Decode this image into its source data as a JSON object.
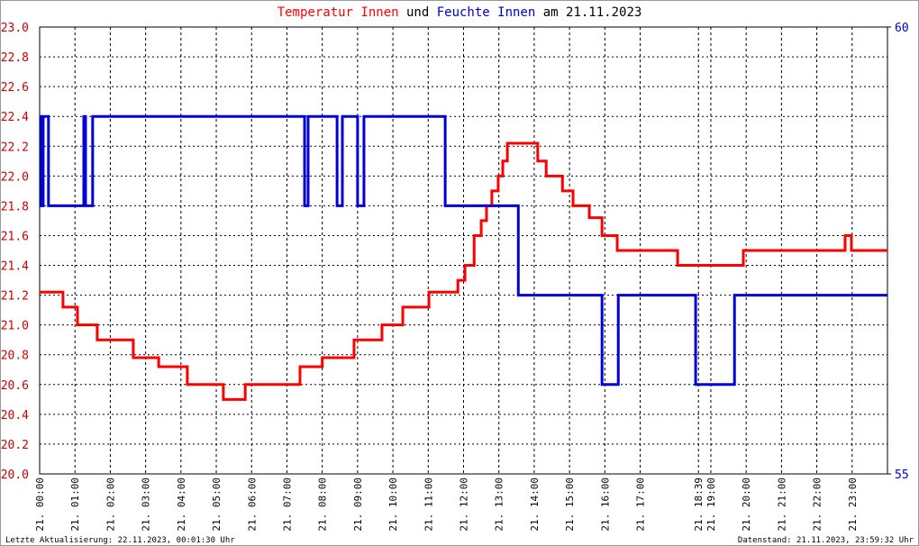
{
  "chart_data": {
    "type": "line",
    "title_parts": [
      {
        "text": "Temperatur Innen",
        "color": "#ff0000"
      },
      {
        "text": "und",
        "color": "#000000"
      },
      {
        "text": "Feuchte Innen",
        "color": "#0000cc"
      },
      {
        "text": "am 21.11.2023",
        "color": "#000000"
      }
    ],
    "footer_left": "Letzte Aktualisierung: 22.11.2023, 00:01:30 Uhr",
    "footer_right": "Datenstand: 21.11.2023, 23:59:32 Uhr",
    "step": true,
    "grid": true,
    "xlim": [
      0,
      24
    ],
    "xticks": [
      {
        "value": 0,
        "label": "21. 00:00"
      },
      {
        "value": 1,
        "label": "21. 01:00"
      },
      {
        "value": 2,
        "label": "21. 02:00"
      },
      {
        "value": 3,
        "label": "21. 03:00"
      },
      {
        "value": 4,
        "label": "21. 04:00"
      },
      {
        "value": 5,
        "label": "21. 05:00"
      },
      {
        "value": 6,
        "label": "21. 06:00"
      },
      {
        "value": 7,
        "label": "21. 07:00"
      },
      {
        "value": 8,
        "label": "21. 08:00"
      },
      {
        "value": 9,
        "label": "21. 09:00"
      },
      {
        "value": 10,
        "label": "21. 10:00"
      },
      {
        "value": 11,
        "label": "21. 11:00"
      },
      {
        "value": 12,
        "label": "21. 12:00"
      },
      {
        "value": 13,
        "label": "21. 13:00"
      },
      {
        "value": 14,
        "label": "21. 14:00"
      },
      {
        "value": 15,
        "label": "21. 15:00"
      },
      {
        "value": 16,
        "label": "21. 16:00"
      },
      {
        "value": 17,
        "label": "21. 17:00"
      },
      {
        "value": 18.65,
        "label": "21. 18:39"
      },
      {
        "value": 19,
        "label": "21. 19:00"
      },
      {
        "value": 20,
        "label": "21. 20:00"
      },
      {
        "value": 21,
        "label": "21. 21:00"
      },
      {
        "value": 22,
        "label": "21. 22:00"
      },
      {
        "value": 23,
        "label": "21. 23:00"
      }
    ],
    "ylim": [
      20,
      23
    ],
    "yticks": [
      {
        "value": 20,
        "label": "20.0"
      },
      {
        "value": 20.2,
        "label": "20.2"
      },
      {
        "value": 20.4,
        "label": "20.4"
      },
      {
        "value": 20.6,
        "label": "20.6"
      },
      {
        "value": 20.8,
        "label": "20.8"
      },
      {
        "value": 21,
        "label": "21.0"
      },
      {
        "value": 21.2,
        "label": "21.2"
      },
      {
        "value": 21.4,
        "label": "21.4"
      },
      {
        "value": 21.6,
        "label": "21.6"
      },
      {
        "value": 21.8,
        "label": "21.8"
      },
      {
        "value": 22,
        "label": "22.0"
      },
      {
        "value": 22.2,
        "label": "22.2"
      },
      {
        "value": 22.4,
        "label": "22.4"
      },
      {
        "value": 22.6,
        "label": "22.6"
      },
      {
        "value": 22.8,
        "label": "22.8"
      },
      {
        "value": 23,
        "label": "23.0"
      }
    ],
    "y2lim": [
      55,
      60
    ],
    "y2ticks": [
      55,
      60
    ],
    "series": [
      {
        "name": "Temperatur Innen",
        "color": "#ff0000",
        "axis": "y",
        "x": [
          0,
          0.66,
          1.07,
          1.63,
          2.65,
          3.37,
          4.18,
          5.2,
          5.82,
          7.37,
          8.0,
          8.9,
          9.69,
          10.28,
          11.02,
          11.84,
          12.04,
          12.3,
          12.5,
          12.65,
          12.8,
          12.98,
          13.11,
          13.24,
          14.1,
          14.34,
          14.8,
          15.1,
          15.56,
          15.92,
          16.35,
          18.06,
          19.92,
          22.8,
          22.98,
          24
        ],
        "values": [
          21.22,
          21.12,
          21.0,
          20.9,
          20.78,
          20.72,
          20.6,
          20.5,
          20.6,
          20.72,
          20.78,
          20.9,
          21.0,
          21.12,
          21.22,
          21.3,
          21.4,
          21.6,
          21.7,
          21.8,
          21.9,
          22.0,
          22.1,
          22.22,
          22.1,
          22.0,
          21.9,
          21.8,
          21.72,
          21.6,
          21.5,
          21.4,
          21.5,
          21.6,
          21.5,
          21.5
        ]
      },
      {
        "name": "Feuchte Innen",
        "color": "#0000dd",
        "axis": "y2",
        "x": [
          0,
          0.05,
          0.1,
          0.25,
          1.25,
          1.3,
          1.5,
          7.5,
          7.6,
          8.42,
          8.57,
          9.0,
          9.18,
          11.48,
          13.55,
          15.92,
          16.38,
          18.57,
          19.67,
          24
        ],
        "values": [
          59,
          58,
          59,
          58,
          59,
          58,
          59,
          58,
          59,
          58,
          59,
          58,
          59,
          58,
          57,
          56,
          57,
          56,
          57,
          57
        ]
      }
    ]
  }
}
